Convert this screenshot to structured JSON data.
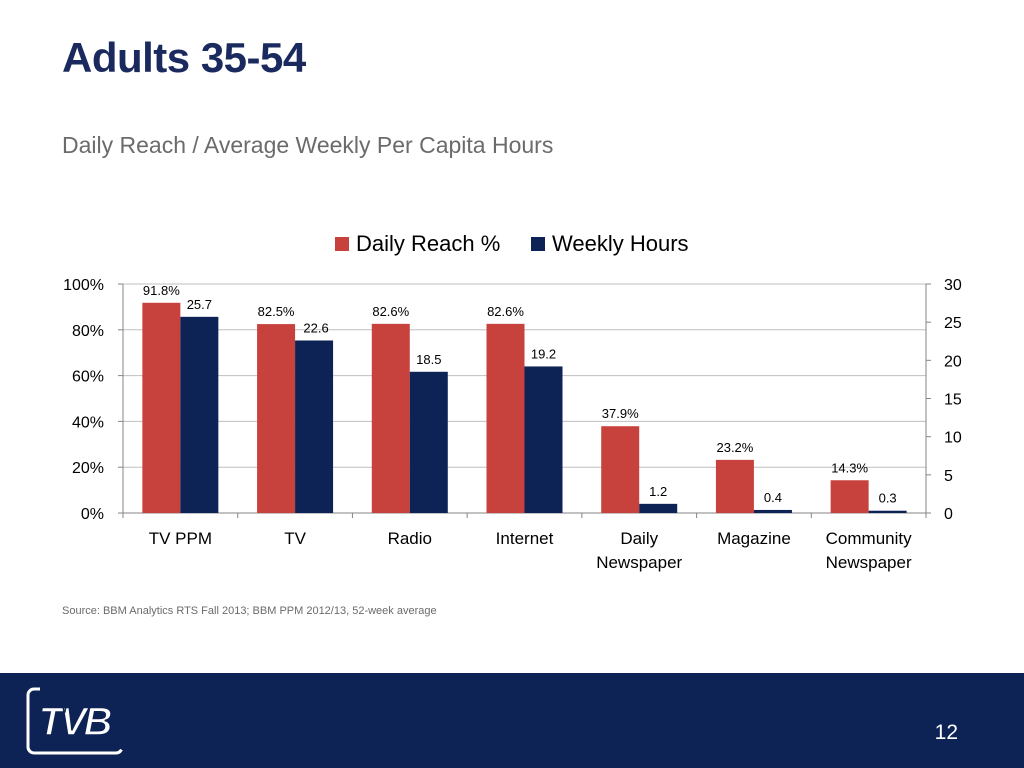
{
  "slide": {
    "title": "Adults 35-54",
    "subtitle": "Daily Reach / Average Weekly Per Capita Hours",
    "source": "Source: BBM Analytics RTS Fall 2013; BBM PPM 2012/13, 52-week average",
    "page_number": "12",
    "logo_text": "TVB"
  },
  "chart_data": {
    "type": "bar",
    "title": "",
    "categories": [
      [
        "TV PPM"
      ],
      [
        "TV"
      ],
      [
        "Radio"
      ],
      [
        "Internet"
      ],
      [
        "Daily",
        "Newspaper"
      ],
      [
        "Magazine"
      ],
      [
        "Community",
        "Newspaper"
      ]
    ],
    "series": [
      {
        "name": "Daily Reach %",
        "axis": "left",
        "color": "#c8423d",
        "values": [
          91.8,
          82.5,
          82.6,
          82.6,
          37.9,
          23.2,
          14.3
        ],
        "labels": [
          "91.8%",
          "82.5%",
          "82.6%",
          "82.6%",
          "37.9%",
          "23.2%",
          "14.3%"
        ]
      },
      {
        "name": "Weekly Hours",
        "axis": "right",
        "color": "#0e2355",
        "values": [
          25.7,
          22.6,
          18.5,
          19.2,
          1.2,
          0.4,
          0.3
        ],
        "labels": [
          "25.7",
          "22.6",
          "18.5",
          "19.2",
          "1.2",
          "0.4",
          "0.3"
        ]
      }
    ],
    "y_left": {
      "range": [
        0,
        100
      ],
      "ticks": [
        "0%",
        "20%",
        "40%",
        "60%",
        "80%",
        "100%"
      ]
    },
    "y_right": {
      "range": [
        0,
        30
      ],
      "ticks": [
        "0",
        "5",
        "10",
        "15",
        "20",
        "25",
        "30"
      ]
    },
    "grid": true,
    "legend_position": "top"
  }
}
